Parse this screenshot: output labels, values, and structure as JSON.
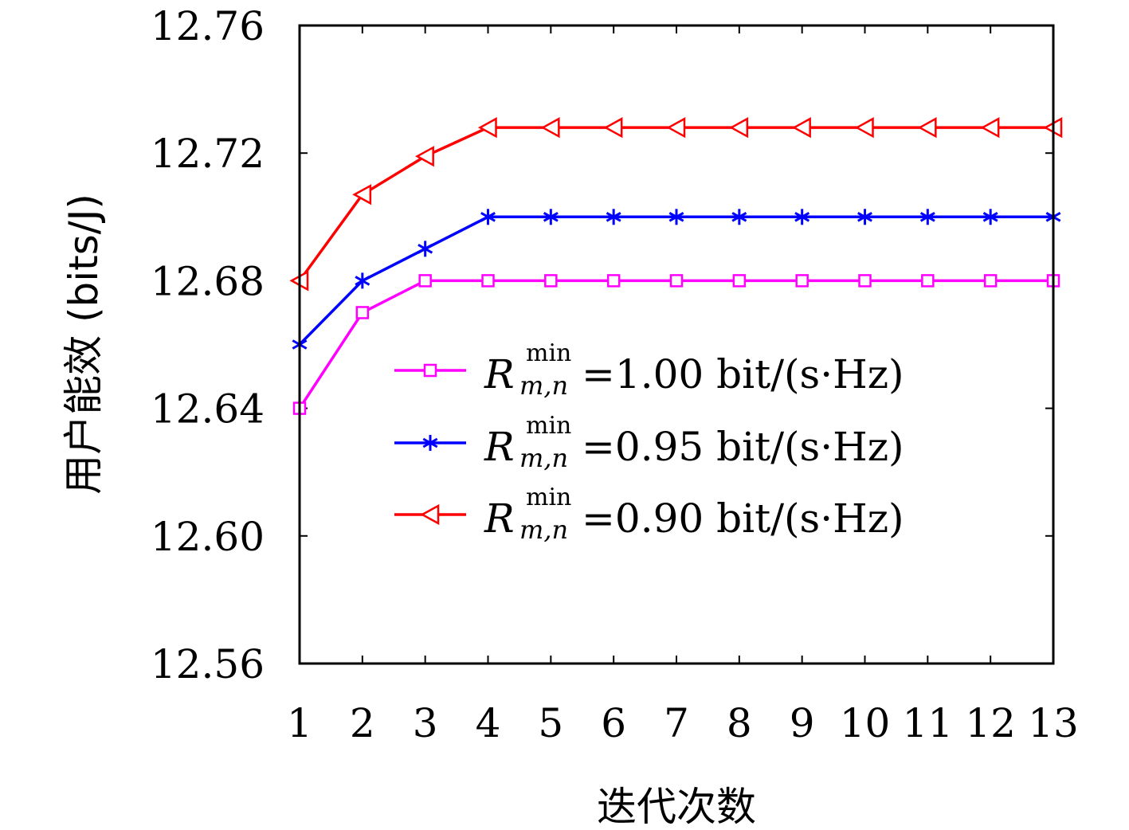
{
  "chart_data": {
    "type": "line",
    "xlabel": "迭代次数",
    "ylabel": "用户能效 (bits/J)",
    "x": [
      1,
      2,
      3,
      4,
      5,
      6,
      7,
      8,
      9,
      10,
      11,
      12,
      13
    ],
    "xticks": [
      "1",
      "2",
      "3",
      "4",
      "5",
      "6",
      "7",
      "8",
      "9",
      "10",
      "11",
      "12",
      "13"
    ],
    "ylim": [
      12.56,
      12.76
    ],
    "yticks": [
      "12.56",
      "12.60",
      "12.64",
      "12.68",
      "12.72",
      "12.76"
    ],
    "grid": false,
    "legend_position": "center-right",
    "series": [
      {
        "name": "=1.00 bit/(s·Hz)",
        "symbol": "R",
        "subscript": "m,n",
        "superscript": "min",
        "color": "#ff00ff",
        "marker": "square",
        "values": [
          12.64,
          12.67,
          12.68,
          12.68,
          12.68,
          12.68,
          12.68,
          12.68,
          12.68,
          12.68,
          12.68,
          12.68,
          12.68
        ]
      },
      {
        "name": "=0.95 bit/(s·Hz)",
        "symbol": "R",
        "subscript": "m,n",
        "superscript": "min",
        "color": "#0000ff",
        "marker": "asterisk",
        "values": [
          12.66,
          12.68,
          12.69,
          12.7,
          12.7,
          12.7,
          12.7,
          12.7,
          12.7,
          12.7,
          12.7,
          12.7,
          12.7
        ]
      },
      {
        "name": "=0.90 bit/(s·Hz)",
        "symbol": "R",
        "subscript": "m,n",
        "superscript": "min",
        "color": "#ff0000",
        "marker": "triangle-left",
        "values": [
          12.68,
          12.707,
          12.719,
          12.728,
          12.728,
          12.728,
          12.728,
          12.728,
          12.728,
          12.728,
          12.728,
          12.728,
          12.728
        ]
      }
    ]
  }
}
